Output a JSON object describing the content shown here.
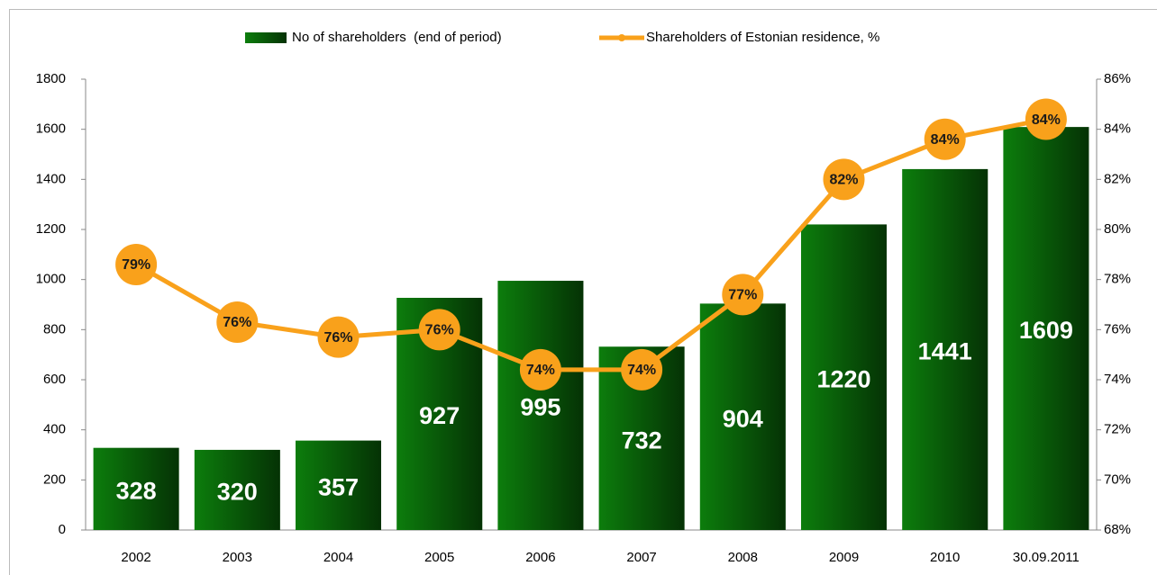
{
  "chart_data": {
    "type": "bar",
    "categories": [
      "2002",
      "2003",
      "2004",
      "2005",
      "2006",
      "2007",
      "2008",
      "2009",
      "2010",
      "30.09.2011"
    ],
    "series": [
      {
        "name": "No of shareholders  (end of period)",
        "color": "#0c7d0c",
        "values": [
          328,
          320,
          357,
          927,
          995,
          732,
          904,
          1220,
          1441,
          1609
        ]
      },
      {
        "name": "Shareholders of Estonian residence, %",
        "type": "line",
        "axis": "y2",
        "color": "#f9a11b",
        "values": [
          78.6,
          76.3,
          75.7,
          76.0,
          74.4,
          74.4,
          77.4,
          82.0,
          83.6,
          84.4
        ],
        "value_labels": [
          "79%",
          "76%",
          "76%",
          "76%",
          "74%",
          "74%",
          "77%",
          "82%",
          "84%",
          "84%"
        ]
      }
    ],
    "ylim": [
      0,
      1800
    ],
    "yticks": [
      0,
      200,
      400,
      600,
      800,
      1000,
      1200,
      1400,
      1600,
      1800
    ],
    "y2lim": [
      68,
      86
    ],
    "y2ticks": [
      {
        "value": 68,
        "label": "68%"
      },
      {
        "value": 70,
        "label": "70%"
      },
      {
        "value": 72,
        "label": "72%"
      },
      {
        "value": 74,
        "label": "74%"
      },
      {
        "value": 76,
        "label": "76%"
      },
      {
        "value": 78,
        "label": "78%"
      },
      {
        "value": 80,
        "label": "80%"
      },
      {
        "value": 82,
        "label": "82%"
      },
      {
        "value": 84,
        "label": "84%"
      },
      {
        "value": 86,
        "label": "86%"
      }
    ],
    "legend": "top"
  }
}
